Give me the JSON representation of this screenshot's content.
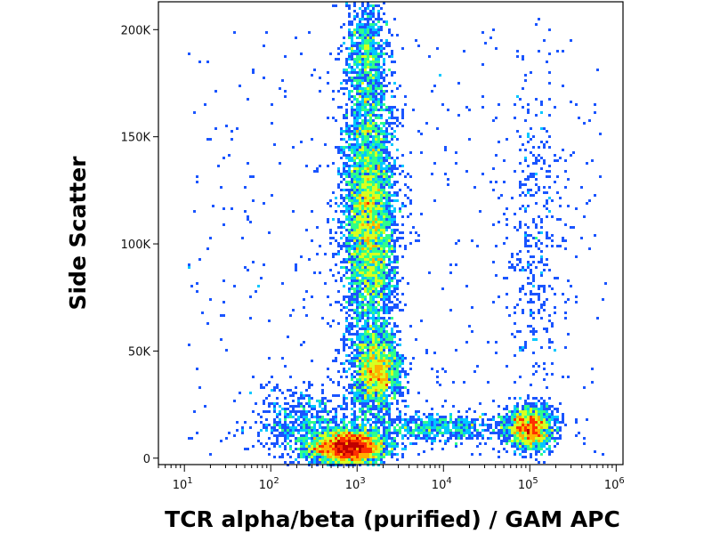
{
  "chart_data": {
    "type": "scatter",
    "style": "density",
    "xlabel": "TCR alpha/beta (purified) / GAM APC",
    "ylabel": "Side Scatter",
    "x_scale": "log",
    "xlim": [
      5,
      1200000
    ],
    "ylim": [
      -3000,
      213000
    ],
    "x_ticks": [
      {
        "value": 10,
        "base": "10",
        "exp": "1"
      },
      {
        "value": 100,
        "base": "10",
        "exp": "2"
      },
      {
        "value": 1000,
        "base": "10",
        "exp": "3"
      },
      {
        "value": 10000,
        "base": "10",
        "exp": "4"
      },
      {
        "value": 100000,
        "base": "10",
        "exp": "5"
      },
      {
        "value": 1000000,
        "base": "10",
        "exp": "6"
      }
    ],
    "y_ticks": [
      {
        "value": 0,
        "label": "0"
      },
      {
        "value": 50000,
        "label": "50K"
      },
      {
        "value": 100000,
        "label": "100K"
      },
      {
        "value": 150000,
        "label": "150K"
      },
      {
        "value": 200000,
        "label": "200K"
      }
    ],
    "populations": [
      {
        "x_center": 800,
        "y_center": 5000,
        "x_spread_decades": 0.22,
        "y_spread": 4000,
        "count": 3200
      },
      {
        "x_center": 1400,
        "y_center": 110000,
        "x_spread_decades": 0.15,
        "y_spread": 30000,
        "count": 4500
      },
      {
        "x_center": 1700,
        "y_center": 40000,
        "x_spread_decades": 0.14,
        "y_spread": 9000,
        "count": 1700
      },
      {
        "x_center": 1300,
        "y_center": 185000,
        "x_spread_decades": 0.12,
        "y_spread": 18000,
        "count": 1000
      },
      {
        "x_center": 100000,
        "y_center": 14000,
        "x_spread_decades": 0.14,
        "y_spread": 5000,
        "count": 1500
      },
      {
        "x_center": 110000,
        "y_center": 100000,
        "x_spread_decades": 0.16,
        "y_spread": 45000,
        "count": 350
      },
      {
        "x_center": 8000,
        "y_center": 14000,
        "x_spread_decades": 0.45,
        "y_spread": 3500,
        "count": 600
      },
      {
        "x_center": 300,
        "y_center": 15000,
        "x_spread_decades": 0.35,
        "y_spread": 9000,
        "count": 700
      }
    ],
    "colormap": [
      "#0a0aa8",
      "#1a55ff",
      "#00c8ff",
      "#30ff8a",
      "#d8ff20",
      "#ffb000",
      "#ff3000",
      "#c00000"
    ],
    "grid": false,
    "legend": "none"
  }
}
